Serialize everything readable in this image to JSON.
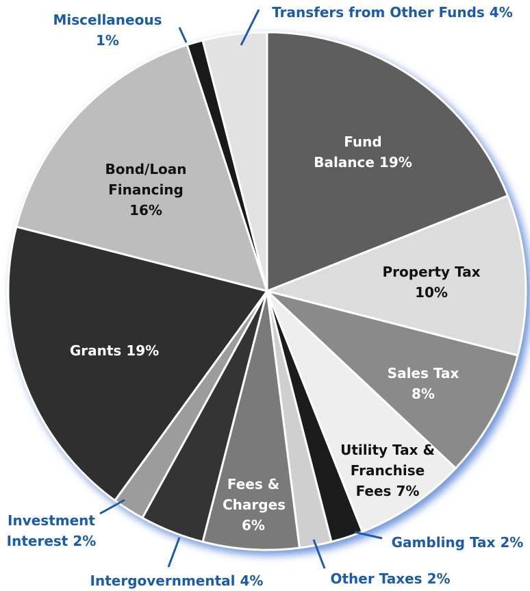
{
  "chart_data": {
    "type": "pie",
    "categories": [
      "Fund Balance",
      "Property Tax",
      "Sales Tax",
      "Utility Tax & Franchise Fees",
      "Gambling Tax",
      "Other Taxes",
      "Fees & Charges",
      "Intergovernmental",
      "Investment Interest",
      "Grants",
      "Bond/Loan Financing",
      "Miscellaneous",
      "Transfers from Other Funds"
    ],
    "values": [
      19,
      10,
      8,
      7,
      2,
      2,
      6,
      4,
      2,
      19,
      16,
      1,
      4
    ],
    "value_labels": [
      "19%",
      "10%",
      "8%",
      "7%",
      "2%",
      "2%",
      "6%",
      "4%",
      "2%",
      "19%",
      "16%",
      "1%",
      "4%"
    ],
    "colors": [
      "#5e5e5e",
      "#dcdcdc",
      "#8a8a8a",
      "#eeeeee",
      "#1c1c1c",
      "#cfcfcf",
      "#7a7a7a",
      "#343434",
      "#9c9c9c",
      "#2f2f2f",
      "#bdbdbd",
      "#1a1a1a",
      "#e2e2e2"
    ]
  }
}
